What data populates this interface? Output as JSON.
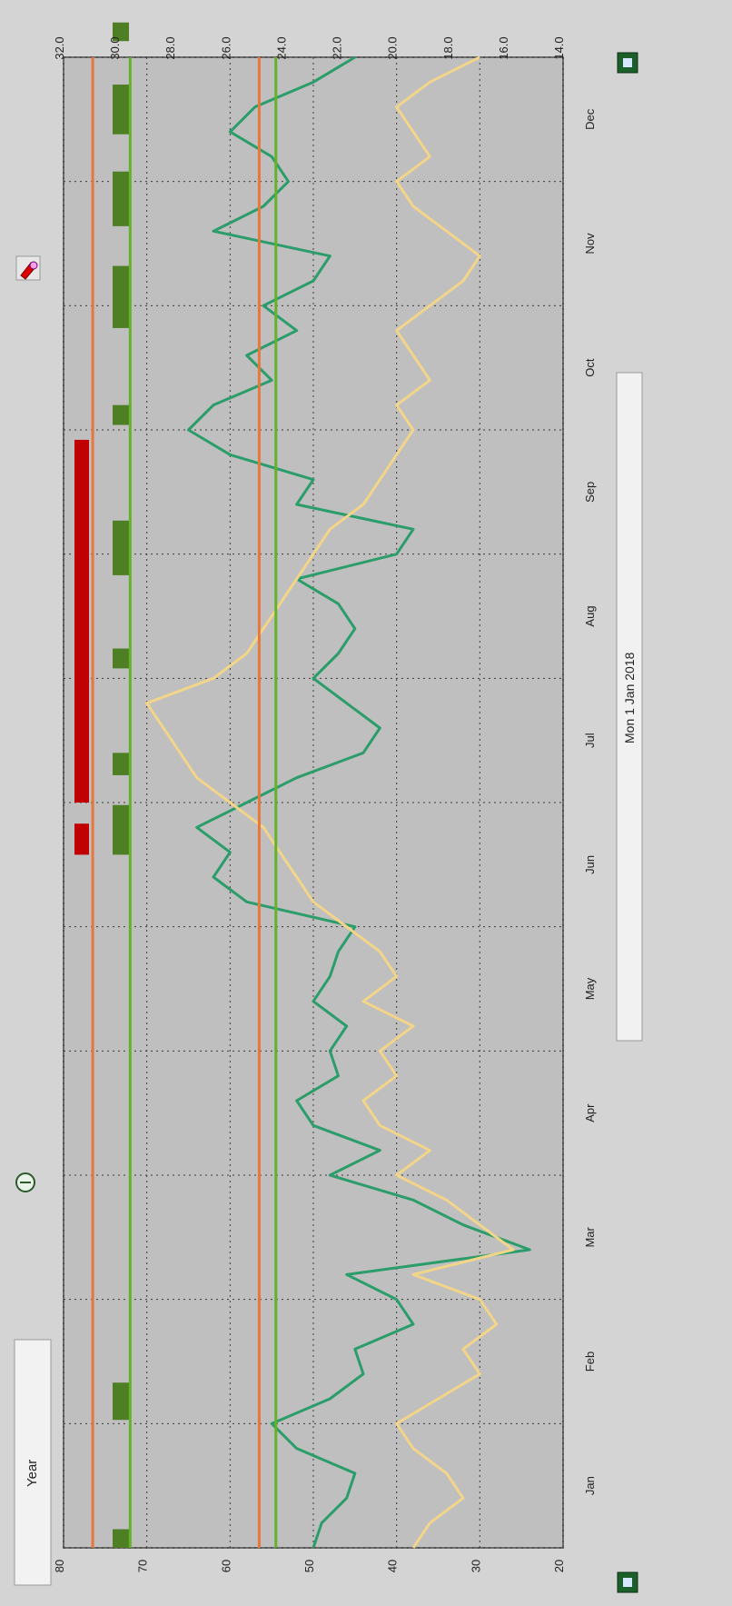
{
  "period_selector": {
    "value": "Year"
  },
  "date_field": {
    "value": "Mon 1 Jan 2018"
  },
  "icons": {
    "zoom_out": "minus-circle-icon",
    "pen": "pen-icon",
    "save_left": "floppy-disk-icon",
    "save_right": "floppy-disk-icon"
  },
  "chart_data": {
    "type": "line",
    "title": "",
    "x_categories": [
      "Jan",
      "Feb",
      "Mar",
      "Apr",
      "May",
      "Jun",
      "Jul",
      "Aug",
      "Sep",
      "Oct",
      "Nov",
      "Dec"
    ],
    "y_left": {
      "min": 20,
      "max": 80,
      "ticks": [
        "20",
        "30",
        "40",
        "50",
        "60",
        "70",
        "80"
      ]
    },
    "y_right": {
      "min": 14.0,
      "max": 32.0,
      "ticks": [
        "14.0",
        "16.0",
        "18.0",
        "20.0",
        "22.0",
        "24.0",
        "26.0",
        "28.0",
        "30.0",
        "32.0"
      ]
    },
    "grid": true,
    "colors": {
      "background": "#bfbfbf",
      "green_series": "#2a9d6a",
      "yellow_series": "#f3d58a",
      "orange_threshold": "#e8773a",
      "green_threshold": "#63b22a",
      "green_band": "#4f7f24",
      "red_band": "#c00000"
    },
    "threshold_lines": [
      {
        "axis": "left",
        "value": 76.5,
        "color": "orange"
      },
      {
        "axis": "left",
        "value": 72.0,
        "color": "green"
      },
      {
        "axis": "left",
        "value": 56.5,
        "color": "orange"
      },
      {
        "axis": "left",
        "value": 54.5,
        "color": "green"
      }
    ],
    "series": [
      {
        "axis": "left",
        "color": "green",
        "x": [
          0.0,
          0.2,
          0.4,
          0.6,
          0.8,
          1.0,
          1.2,
          1.4,
          1.6,
          1.8,
          2.0,
          2.2,
          2.4,
          2.6,
          2.8,
          3.0,
          3.2,
          3.4,
          3.6,
          3.8,
          4.0,
          4.2,
          4.4,
          4.6,
          4.8,
          5.0,
          5.2,
          5.4,
          5.6,
          5.8,
          6.0,
          6.2,
          6.4,
          6.6,
          6.8,
          7.0,
          7.2,
          7.4,
          7.6,
          7.8,
          8.0,
          8.2,
          8.4,
          8.6,
          8.8,
          9.0,
          9.2,
          9.4,
          9.6,
          9.8,
          10.0,
          10.2,
          10.4,
          10.6,
          10.8,
          11.0,
          11.2,
          11.4,
          11.6,
          11.8,
          12.0
        ],
        "values": [
          50,
          49,
          46,
          45,
          52,
          55,
          48,
          44,
          45,
          38,
          40,
          46,
          24,
          32,
          38,
          48,
          42,
          50,
          52,
          47,
          48,
          46,
          50,
          48,
          47,
          45,
          58,
          62,
          60,
          64,
          58,
          52,
          44,
          42,
          46,
          50,
          47,
          45,
          47,
          52,
          40,
          38,
          52,
          50,
          60,
          65,
          62,
          55,
          58,
          52,
          56,
          50,
          48,
          62,
          56,
          53,
          55,
          60,
          57,
          50,
          45
        ]
      },
      {
        "axis": "left",
        "color": "yellow",
        "x": [
          0.0,
          0.2,
          0.4,
          0.6,
          0.8,
          1.0,
          1.2,
          1.4,
          1.6,
          1.8,
          2.0,
          2.2,
          2.4,
          2.6,
          2.8,
          3.0,
          3.2,
          3.4,
          3.6,
          3.8,
          4.0,
          4.2,
          4.4,
          4.6,
          4.8,
          5.0,
          5.2,
          5.4,
          5.6,
          5.8,
          6.0,
          6.2,
          6.4,
          6.6,
          6.8,
          7.0,
          7.2,
          7.4,
          7.6,
          7.8,
          8.0,
          8.2,
          8.4,
          8.6,
          8.8,
          9.0,
          9.2,
          9.4,
          9.6,
          9.8,
          10.0,
          10.2,
          10.4,
          10.6,
          10.8,
          11.0,
          11.2,
          11.4,
          11.6,
          11.8,
          12.0
        ],
        "values": [
          38,
          36,
          32,
          34,
          38,
          40,
          35,
          30,
          32,
          28,
          30,
          38,
          26,
          30,
          34,
          40,
          36,
          42,
          44,
          40,
          42,
          38,
          44,
          40,
          42,
          46,
          50,
          52,
          54,
          56,
          60,
          64,
          66,
          68,
          70,
          62,
          58,
          56,
          54,
          52,
          50,
          48,
          44,
          42,
          40,
          38,
          40,
          36,
          38,
          40,
          36,
          32,
          30,
          34,
          38,
          40,
          36,
          38,
          40,
          36,
          30
        ]
      }
    ],
    "bands_top": [
      {
        "color": "green",
        "x0": 0.0,
        "x1": 0.15
      },
      {
        "color": "green",
        "x0": 1.03,
        "x1": 1.33
      },
      {
        "color": "green",
        "x0": 5.58,
        "x1": 5.98
      },
      {
        "color": "green",
        "x0": 6.22,
        "x1": 6.4
      },
      {
        "color": "green",
        "x0": 7.08,
        "x1": 7.24
      },
      {
        "color": "green",
        "x0": 7.83,
        "x1": 8.27
      },
      {
        "color": "green",
        "x0": 9.04,
        "x1": 9.2
      },
      {
        "color": "green",
        "x0": 9.82,
        "x1": 10.32
      },
      {
        "color": "green",
        "x0": 10.64,
        "x1": 11.08
      },
      {
        "color": "green",
        "x0": 11.38,
        "x1": 11.78
      },
      {
        "color": "green",
        "x0": 12.13,
        "x1": 12.28
      },
      {
        "color": "red",
        "x0": 5.58,
        "x1": 5.83
      },
      {
        "color": "red",
        "x0": 6.0,
        "x1": 8.92
      }
    ]
  }
}
